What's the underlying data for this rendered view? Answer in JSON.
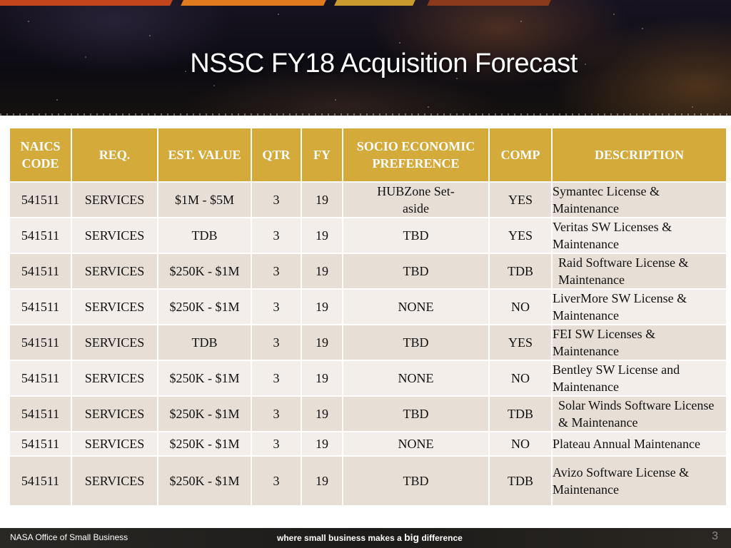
{
  "slide": {
    "title": "NSSC FY18 Acquisition Forecast",
    "header_colors": [
      "#c2451c",
      "#e07a1f",
      "#c99a2e",
      "#8a3a1a"
    ]
  },
  "table": {
    "headers": [
      "NAICS CODE",
      "REQ.",
      "EST. VALUE",
      "QTR",
      "FY",
      "SOCIO ECONOMIC PREFERENCE",
      "COMP",
      "DESCRIPTION"
    ],
    "rows": [
      [
        "541511",
        "SERVICES",
        "$1M - $5M",
        "3",
        "19",
        "HUBZone Set-aside",
        "YES",
        "Symantec License & Maintenance"
      ],
      [
        "541511",
        "SERVICES",
        "TDB",
        "3",
        "19",
        "TBD",
        "YES",
        "Veritas SW Licenses & Maintenance"
      ],
      [
        "541511",
        "SERVICES",
        "$250K - $1M",
        "3",
        "19",
        "TBD",
        "TDB",
        "Raid Software License & Maintenance"
      ],
      [
        "541511",
        "SERVICES",
        "$250K - $1M",
        "3",
        "19",
        "NONE",
        "NO",
        "LiverMore SW License & Maintenance"
      ],
      [
        "541511",
        "SERVICES",
        "TDB",
        "3",
        "19",
        "TBD",
        "YES",
        "FEI SW Licenses & Maintenance"
      ],
      [
        "541511",
        "SERVICES",
        "$250K - $1M",
        "3",
        "19",
        "NONE",
        "NO",
        "Bentley SW License and Maintenance"
      ],
      [
        "541511",
        "SERVICES",
        "$250K - $1M",
        "3",
        "19",
        "TBD",
        "TDB",
        "Solar Winds Software License & Maintenance"
      ],
      [
        "541511",
        "SERVICES",
        "$250K - $1M",
        "3",
        "19",
        "NONE",
        "NO",
        "Plateau Annual Maintenance"
      ],
      [
        "541511",
        "SERVICES",
        "$250K - $1M",
        "3",
        "19",
        "TBD",
        "TDB",
        "Avizo Software License & Maintenance"
      ]
    ]
  },
  "footer": {
    "org": "NASA Office of Small Business",
    "tagline_pre": "where small business makes a ",
    "tagline_big": "big",
    "tagline_post": " difference",
    "page_number": "3"
  },
  "colors": {
    "header_gold": "#d4ab3a",
    "row_odd": "#e7ded5",
    "row_even": "#f3eeea"
  }
}
